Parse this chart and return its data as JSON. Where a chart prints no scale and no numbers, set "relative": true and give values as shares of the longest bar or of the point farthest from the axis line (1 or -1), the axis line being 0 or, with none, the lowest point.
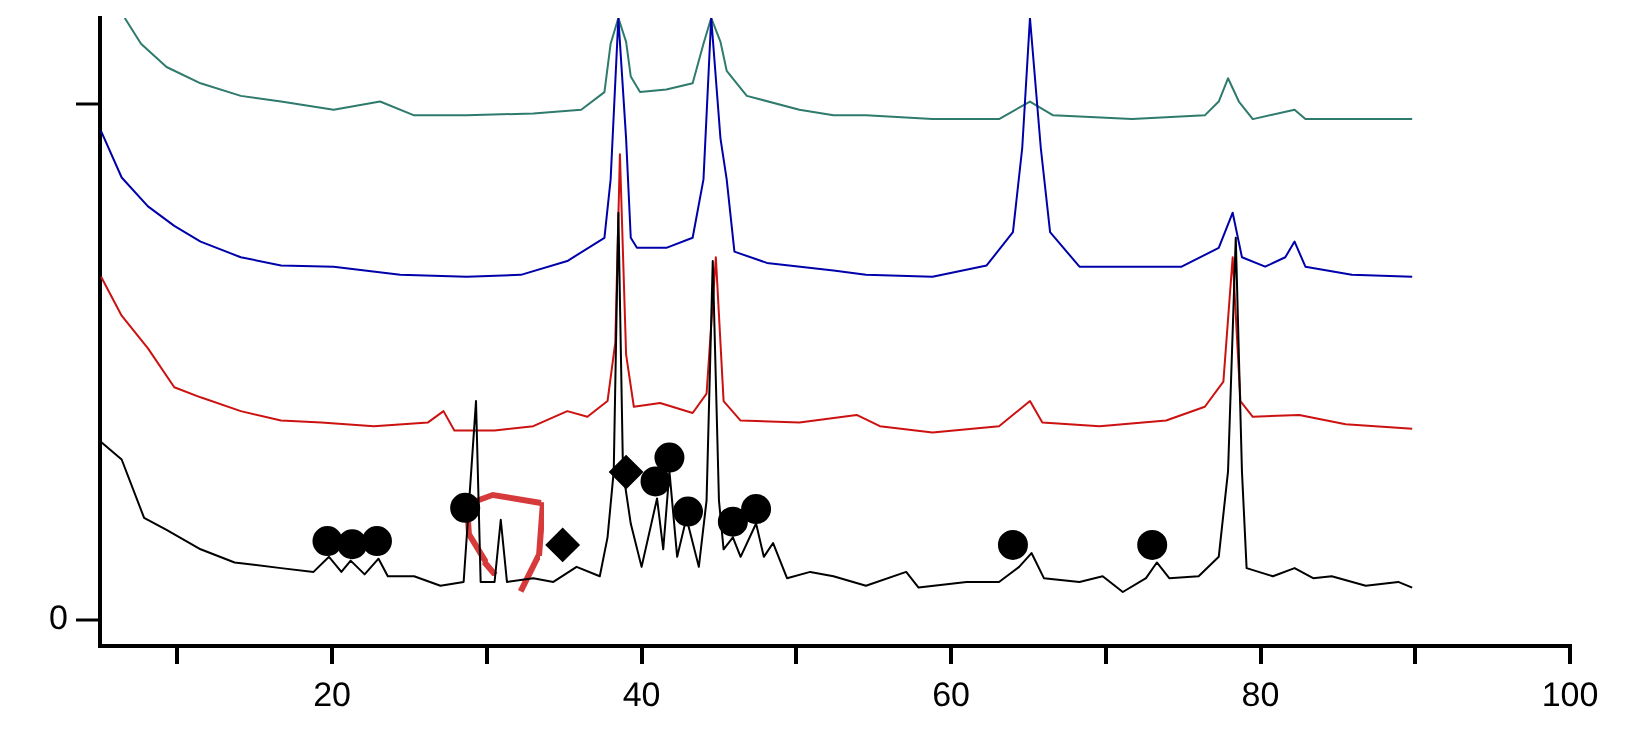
{
  "chart_data": {
    "type": "line",
    "relative": true,
    "xlim": [
      5,
      100
    ],
    "xticks": [
      {
        "value": 10,
        "label": null
      },
      20,
      {
        "value": 30,
        "label": null
      },
      40,
      {
        "value": 50,
        "label": null
      },
      60,
      {
        "value": 70,
        "label": null
      },
      80,
      {
        "value": 90,
        "label": null
      },
      100
    ],
    "annotations": [
      "0"
    ],
    "grid": false,
    "legend": false,
    "line_style": "solid",
    "marker": "none",
    "series": [
      {
        "type": "scatter",
        "marker": "circle",
        "color": "#000000",
        "x": [
          19.7,
          21.3,
          22.9,
          28.6,
          40.9,
          41.8,
          43.0,
          45.9,
          47.4,
          64.0,
          73.0
        ],
        "values": [
          0.167,
          0.162,
          0.167,
          0.22,
          0.262,
          0.3,
          0.214,
          0.198,
          0.218,
          0.161,
          0.161
        ]
      },
      {
        "type": "scatter",
        "marker": "diamond",
        "color": "#000000",
        "x": [
          34.9,
          39.0
        ],
        "values": [
          0.161,
          0.277
        ]
      },
      {
        "color": "#000000",
        "x": [
          5.07,
          6.4,
          7.85,
          9.3,
          11.5,
          13.7,
          16.7,
          18.8,
          19.8,
          20.6,
          21.2,
          22.1,
          23.0,
          23.6,
          25.3,
          27.0,
          28.5,
          29.3,
          29.6,
          30.5,
          30.9,
          31.3,
          33.0,
          34.3,
          35.8,
          37.3,
          37.8,
          38.2,
          38.5,
          38.8,
          39.3,
          40.0,
          41.0,
          41.4,
          41.8,
          42.3,
          42.9,
          43.7,
          44.2,
          44.6,
          45.0,
          45.3,
          45.9,
          46.4,
          47.4,
          47.9,
          48.5,
          49.4,
          50.9,
          52.4,
          54.5,
          57.1,
          57.9,
          61.0,
          63.1,
          64.4,
          65.2,
          66.0,
          68.3,
          69.8,
          71.1,
          72.6,
          73.3,
          74.1,
          76.0,
          77.3,
          77.9,
          78.4,
          78.8,
          79.1,
          80.8,
          82.2,
          83.4,
          84.6,
          86.8,
          88.9,
          89.8
        ],
        "values": [
          0.325,
          0.297,
          0.204,
          0.185,
          0.154,
          0.133,
          0.124,
          0.118,
          0.142,
          0.118,
          0.136,
          0.114,
          0.139,
          0.111,
          0.111,
          0.096,
          0.102,
          0.39,
          0.102,
          0.102,
          0.201,
          0.102,
          0.108,
          0.102,
          0.126,
          0.111,
          0.173,
          0.278,
          0.69,
          0.278,
          0.195,
          0.126,
          0.235,
          0.154,
          0.278,
          0.142,
          0.204,
          0.126,
          0.232,
          0.613,
          0.232,
          0.154,
          0.173,
          0.142,
          0.195,
          0.142,
          0.164,
          0.108,
          0.118,
          0.111,
          0.096,
          0.118,
          0.093,
          0.102,
          0.102,
          0.126,
          0.148,
          0.108,
          0.102,
          0.111,
          0.086,
          0.108,
          0.133,
          0.108,
          0.111,
          0.142,
          0.278,
          0.65,
          0.278,
          0.124,
          0.111,
          0.124,
          0.108,
          0.111,
          0.096,
          0.102,
          0.093
        ]
      },
      {
        "color": "#cc1111",
        "x": [
          5.07,
          6.4,
          8.1,
          9.8,
          11.5,
          14.1,
          16.7,
          19.3,
          22.7,
          26.2,
          27.2,
          27.9,
          30.5,
          33.0,
          35.2,
          36.5,
          37.8,
          38.3,
          38.6,
          39.0,
          39.5,
          41.2,
          43.3,
          44.2,
          44.8,
          45.3,
          46.4,
          50.2,
          53.9,
          55.4,
          58.8,
          63.1,
          65.1,
          65.9,
          69.6,
          73.9,
          76.4,
          77.6,
          78.2,
          78.7,
          79.5,
          82.5,
          85.5,
          89.8
        ],
        "values": [
          0.588,
          0.526,
          0.474,
          0.412,
          0.396,
          0.374,
          0.359,
          0.356,
          0.35,
          0.356,
          0.374,
          0.343,
          0.343,
          0.35,
          0.374,
          0.365,
          0.39,
          0.483,
          0.783,
          0.464,
          0.381,
          0.387,
          0.371,
          0.402,
          0.619,
          0.39,
          0.359,
          0.356,
          0.368,
          0.35,
          0.34,
          0.35,
          0.39,
          0.356,
          0.35,
          0.359,
          0.381,
          0.421,
          0.619,
          0.39,
          0.365,
          0.368,
          0.353,
          0.346
        ]
      },
      {
        "color": "#0000aa",
        "x": [
          5.07,
          6.4,
          8.1,
          9.8,
          11.5,
          14.1,
          16.7,
          20.1,
          24.4,
          28.7,
          32.2,
          35.2,
          37.6,
          38.0,
          38.5,
          39.0,
          39.3,
          39.7,
          41.6,
          43.3,
          44.0,
          44.5,
          45.1,
          45.5,
          46.0,
          48.1,
          52.4,
          54.5,
          58.8,
          62.3,
          64.0,
          64.6,
          65.1,
          65.8,
          66.4,
          68.3,
          71.7,
          74.9,
          77.3,
          78.2,
          78.8,
          80.3,
          81.6,
          82.2,
          82.9,
          85.9,
          89.8
        ],
        "values": [
          0.82,
          0.746,
          0.7,
          0.669,
          0.644,
          0.619,
          0.606,
          0.604,
          0.591,
          0.588,
          0.591,
          0.613,
          0.65,
          0.743,
          1,
          0.808,
          0.65,
          0.634,
          0.634,
          0.65,
          0.743,
          1,
          0.808,
          0.743,
          0.628,
          0.61,
          0.598,
          0.591,
          0.588,
          0.606,
          0.659,
          0.793,
          1,
          0.793,
          0.659,
          0.604,
          0.604,
          0.604,
          0.634,
          0.69,
          0.619,
          0.604,
          0.619,
          0.644,
          0.604,
          0.591,
          0.588
        ]
      },
      {
        "color": "#2e7a6c",
        "x": [
          6.6,
          7.65,
          9.3,
          11.5,
          14.1,
          16.7,
          20.1,
          23.1,
          25.3,
          28.7,
          33.0,
          36.1,
          37.6,
          38.0,
          38.5,
          39.0,
          39.3,
          39.9,
          41.6,
          43.3,
          44.0,
          44.5,
          45.1,
          45.5,
          46.8,
          50.2,
          52.4,
          54.5,
          58.8,
          63.1,
          65.1,
          66.6,
          71.7,
          76.4,
          77.3,
          77.9,
          78.6,
          79.5,
          82.2,
          82.9,
          86.8,
          89.8
        ],
        "values": [
          1,
          0.959,
          0.922,
          0.896,
          0.876,
          0.867,
          0.854,
          0.867,
          0.845,
          0.845,
          0.848,
          0.854,
          0.882,
          0.959,
          1,
          0.962,
          0.907,
          0.882,
          0.886,
          0.896,
          0.959,
          1,
          0.962,
          0.916,
          0.876,
          0.854,
          0.845,
          0.845,
          0.839,
          0.839,
          0.867,
          0.845,
          0.839,
          0.845,
          0.867,
          0.904,
          0.867,
          0.839,
          0.854,
          0.839,
          0.839,
          0.839
        ]
      }
    ]
  }
}
